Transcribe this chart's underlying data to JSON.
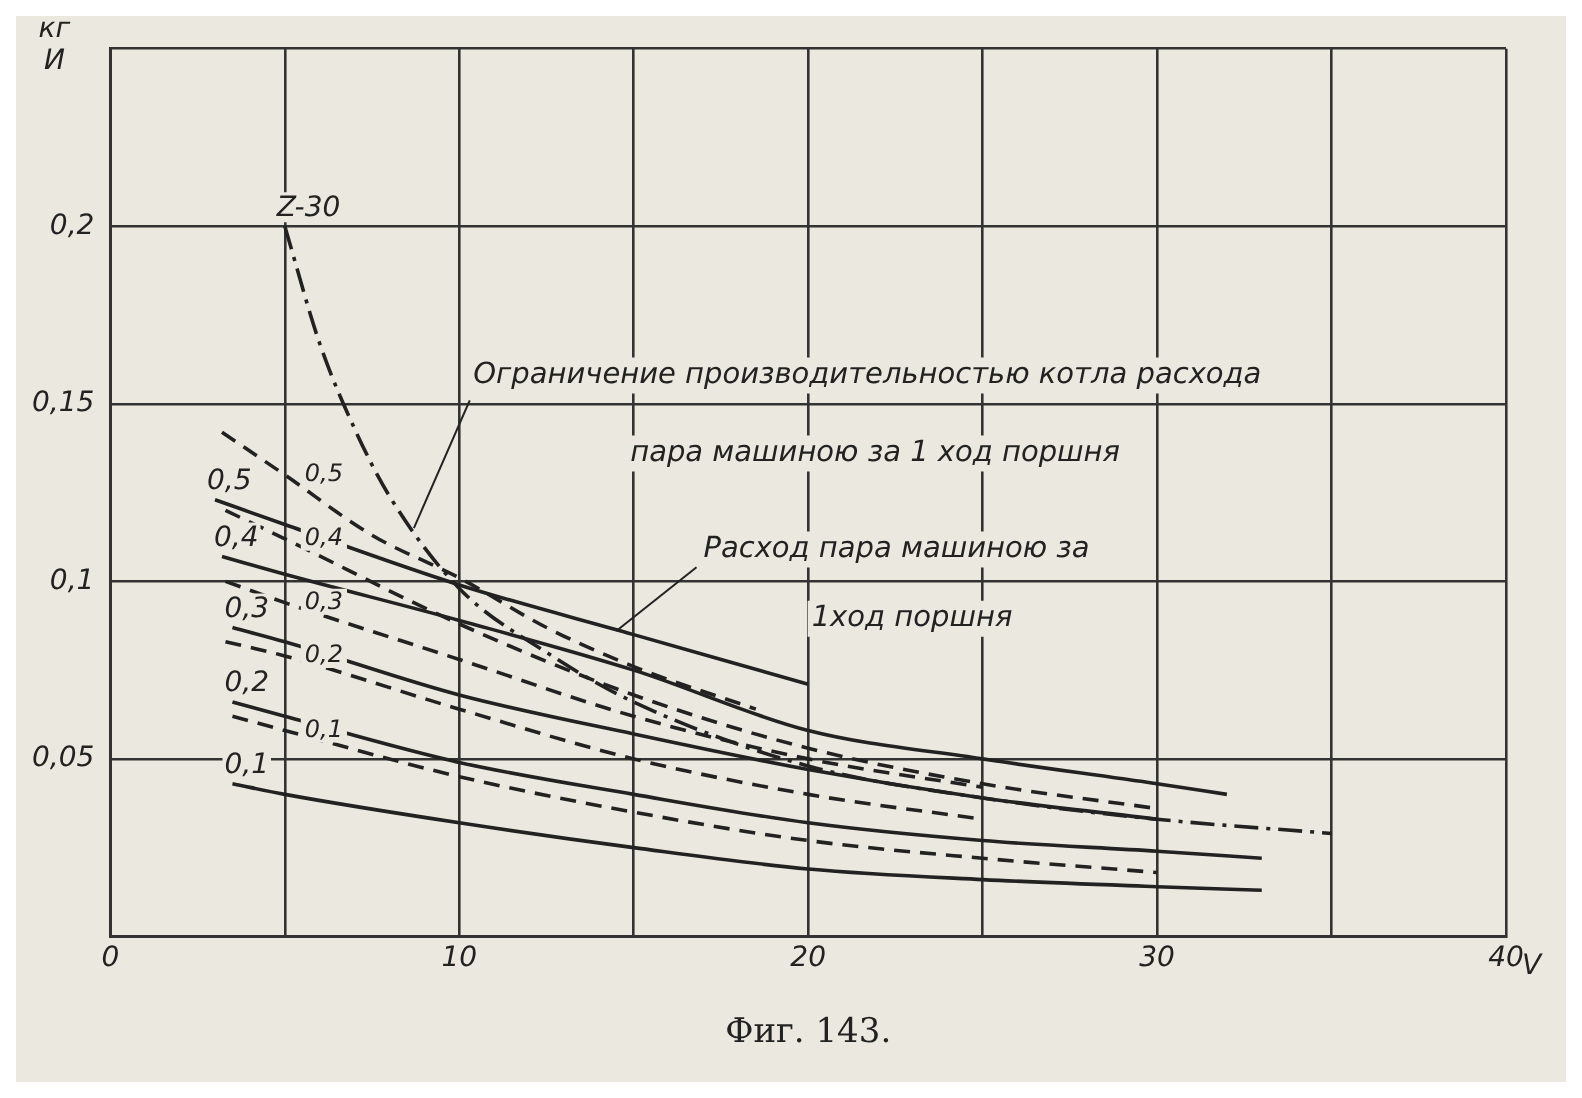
{
  "chart_data": {
    "type": "line",
    "ylabel": "кг И",
    "xlabel": "V",
    "xlim": [
      0,
      40
    ],
    "xticks": [
      0,
      {
        "value": 5,
        "label": null
      },
      10,
      {
        "value": 15,
        "label": null
      },
      20,
      {
        "value": 25,
        "label": null
      },
      30,
      {
        "value": 35,
        "label": null
      },
      {
        "value": 40,
        "label": "40"
      }
    ],
    "ylim": [
      0,
      0.25
    ],
    "yticks": [
      {
        "value": 0,
        "label": null
      },
      {
        "value": 0.05,
        "label": "0,05"
      },
      {
        "value": 0.1,
        "label": "0,1"
      },
      {
        "value": 0.15,
        "label": "0,15"
      },
      {
        "value": 0.2,
        "label": "0,2"
      },
      {
        "value": 0.25,
        "label": null
      }
    ],
    "grid": true,
    "legend": false,
    "marker": "none",
    "series": [
      {
        "name": "Z-30",
        "color": "#222222",
        "line_style": "dashdot",
        "x": [
          5,
          6,
          7,
          8,
          10,
          12.5,
          15,
          20,
          25,
          30,
          35
        ],
        "values": [
          0.2,
          0.167,
          0.143,
          0.124,
          0.098,
          0.08,
          0.066,
          0.048,
          0.039,
          0.033,
          0.029
        ]
      },
      {
        "name": "0,5",
        "color": "#222222",
        "line_style": "solid",
        "x": [
          3,
          5,
          10,
          15,
          20
        ],
        "values": [
          0.123,
          0.116,
          0.099,
          0.085,
          0.071
        ]
      },
      {
        "name": "0,4",
        "color": "#222222",
        "line_style": "solid",
        "x": [
          3.2,
          5,
          10,
          15,
          20,
          25,
          30,
          32
        ],
        "values": [
          0.107,
          0.102,
          0.089,
          0.075,
          0.058,
          0.05,
          0.043,
          0.04
        ]
      },
      {
        "name": "0,3",
        "color": "#222222",
        "line_style": "solid",
        "x": [
          3.5,
          5,
          10,
          15,
          20,
          25,
          30
        ],
        "values": [
          0.087,
          0.083,
          0.068,
          0.057,
          0.047,
          0.039,
          0.033
        ]
      },
      {
        "name": "0,2",
        "color": "#222222",
        "line_style": "solid",
        "x": [
          3.5,
          5,
          10,
          15,
          20,
          25,
          30,
          33
        ],
        "values": [
          0.066,
          0.062,
          0.049,
          0.04,
          0.032,
          0.027,
          0.024,
          0.022
        ]
      },
      {
        "name": "0,1",
        "color": "#222222",
        "line_style": "solid",
        "x": [
          3.5,
          5,
          10,
          15,
          20,
          25,
          30,
          33
        ],
        "values": [
          0.043,
          0.04,
          0.032,
          0.025,
          0.019,
          0.016,
          0.014,
          0.013
        ]
      },
      {
        "name": "0,5",
        "color": "#222222",
        "line_style": "dashed",
        "x": [
          3.2,
          5,
          7.5,
          10,
          12.5,
          15,
          18.5
        ],
        "values": [
          0.142,
          0.13,
          0.113,
          0.101,
          0.087,
          0.076,
          0.064
        ]
      },
      {
        "name": "0,4",
        "color": "#222222",
        "line_style": "dashed",
        "x": [
          3.3,
          5,
          10,
          15,
          20,
          25,
          30
        ],
        "values": [
          0.12,
          0.112,
          0.088,
          0.068,
          0.053,
          0.043,
          0.036
        ]
      },
      {
        "name": "0,3",
        "color": "#222222",
        "line_style": "dashed",
        "x": [
          3.3,
          5,
          10,
          15,
          20,
          25
        ],
        "values": [
          0.1,
          0.094,
          0.078,
          0.062,
          0.05,
          0.042
        ]
      },
      {
        "name": "0,2",
        "color": "#222222",
        "line_style": "dashed",
        "x": [
          3.3,
          5,
          10,
          15,
          20,
          25
        ],
        "values": [
          0.083,
          0.079,
          0.064,
          0.05,
          0.04,
          0.033
        ]
      },
      {
        "name": "0,1",
        "color": "#222222",
        "line_style": "dashed",
        "x": [
          3.5,
          5,
          10,
          15,
          20,
          25,
          30
        ],
        "values": [
          0.062,
          0.058,
          0.045,
          0.035,
          0.027,
          0.022,
          0.018
        ]
      }
    ],
    "annotations": [
      {
        "text": "Ограничение производительностью котла расхода",
        "x": 8.7,
        "y": 0.115
      },
      "пара машиною за 1 ход поршня",
      {
        "text": "Расход пара машиною за",
        "x": 14.5,
        "y": 0.086
      },
      "1ход поршня",
      "Фиг. 143."
    ]
  }
}
